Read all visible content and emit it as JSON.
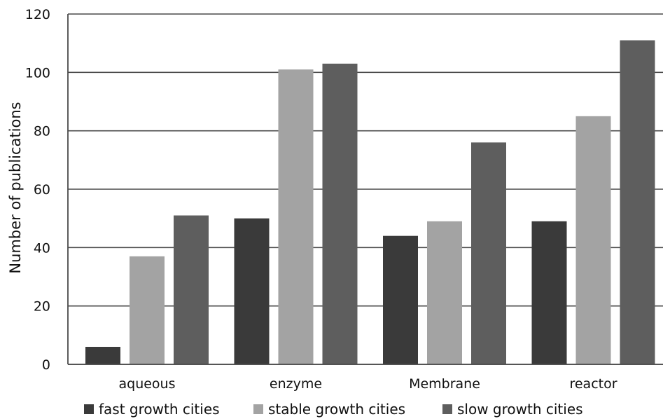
{
  "chart_data": {
    "type": "bar",
    "ylabel": "Number of publications",
    "xlabel": "",
    "ylim": [
      0,
      120
    ],
    "yticks": [
      0,
      20,
      40,
      60,
      80,
      100,
      120
    ],
    "grid": "horizontal",
    "legend_position": "bottom",
    "categories": [
      "aqueous",
      "enzyme",
      "Membrane",
      "reactor"
    ],
    "series": [
      {
        "name": "fast growth cities",
        "color": "#3a3a3a",
        "values": [
          6,
          50,
          44,
          49
        ]
      },
      {
        "name": "stable growth cities",
        "color": "#a3a3a3",
        "values": [
          37,
          101,
          49,
          85
        ]
      },
      {
        "name": "slow growth cities",
        "color": "#5e5e5e",
        "values": [
          51,
          103,
          76,
          111
        ]
      }
    ]
  }
}
